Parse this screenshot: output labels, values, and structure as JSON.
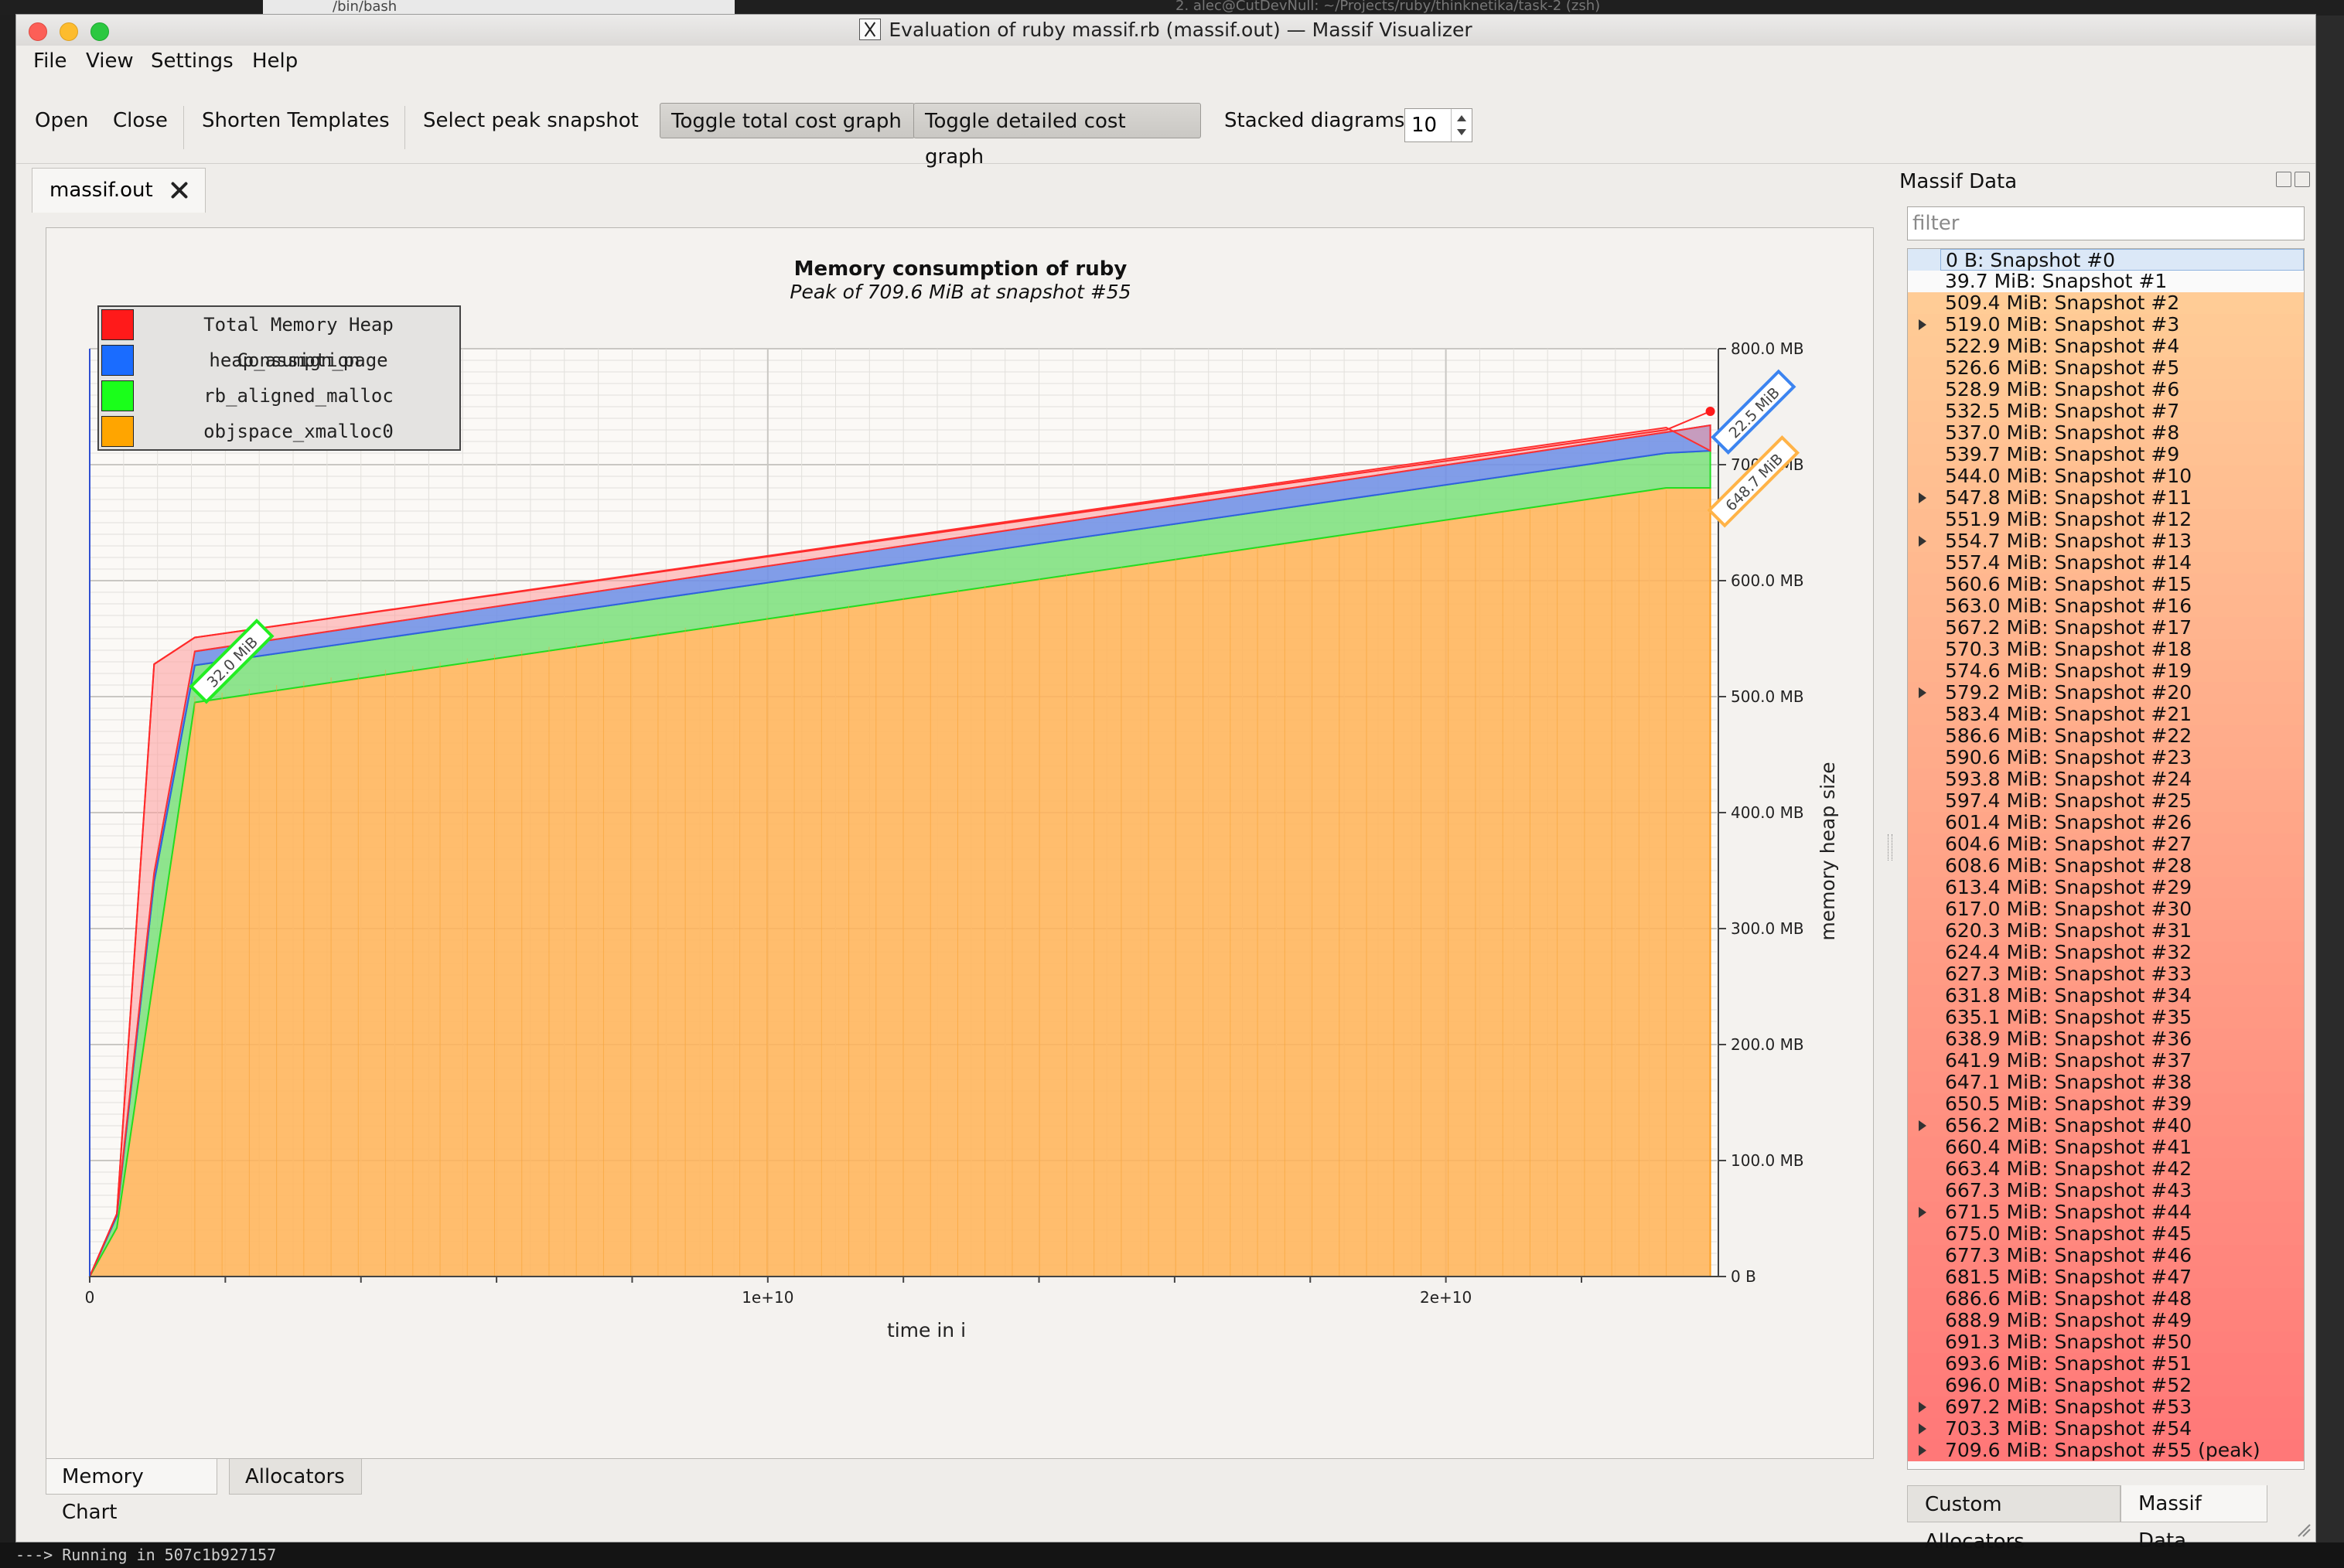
{
  "background": {
    "left_tab_title": "/bin/bash",
    "right_tab_title": "2. alec@CutDevNull: ~/Projects/ruby/thinknetika/task-2 (zsh)",
    "bottom_line": "---> Running in 507c1b927157"
  },
  "window": {
    "title": "Evaluation of ruby massif.rb (massif.out) — Massif Visualizer",
    "icon": "x11-icon"
  },
  "menu": [
    "File",
    "View",
    "Settings",
    "Help"
  ],
  "toolbar": {
    "open": "Open",
    "close": "Close",
    "shorten_templates": "Shorten Templates",
    "select_peak": "Select peak snapshot",
    "toggle_total": "Toggle total cost graph",
    "toggle_detailed": "Toggle detailed cost graph",
    "stacked_label": "Stacked diagrams:",
    "stacked_value": "10"
  },
  "document_tab": {
    "label": "massif.out",
    "close_icon": "close-icon"
  },
  "chart_data": {
    "type": "area",
    "stacked": true,
    "title": "Memory consumption of ruby",
    "subtitle": "Peak of 709.6 MiB at snapshot #55",
    "xlabel": "time in i",
    "ylabel": "memory heap size",
    "xlim": [
      0,
      24000000000
    ],
    "ylim": [
      0,
      800
    ],
    "x_ticks": [
      {
        "value": 0,
        "label": "0"
      },
      {
        "value": 10000000000,
        "label": "1e+10"
      },
      {
        "value": 20000000000,
        "label": "2e+10"
      }
    ],
    "y_ticks": [
      {
        "value": 0,
        "label": "0 B"
      },
      {
        "value": 100,
        "label": "100.0 MB"
      },
      {
        "value": 200,
        "label": "200.0 MB"
      },
      {
        "value": 300,
        "label": "300.0 MB"
      },
      {
        "value": 400,
        "label": "400.0 MB"
      },
      {
        "value": 500,
        "label": "500.0 MB"
      },
      {
        "value": 600,
        "label": "600.0 MB"
      },
      {
        "value": 700,
        "label": "700.0 MB"
      },
      {
        "value": 800,
        "label": "800.0 MB"
      }
    ],
    "grid": true,
    "legend_position": "top-left",
    "x": [
      0,
      400000000,
      950000000,
      1550000000,
      23250000000,
      23900000000
    ],
    "series": [
      {
        "name": "objspace_xmalloc0",
        "color": "#ffb347",
        "values": [
          0,
          42,
          260,
          495,
          680,
          680
        ]
      },
      {
        "name": "rb_aligned_malloc",
        "color": "#22ee22",
        "values": [
          0,
          10,
          80,
          32,
          30,
          32
        ]
      },
      {
        "name": "heap_assign_page",
        "color": "#3c84f0",
        "values": [
          0,
          2,
          8,
          12,
          18,
          22
        ]
      },
      {
        "name": "Total Memory Heap Consumption",
        "color": "#ff3a3a",
        "values": [
          0,
          0,
          180,
          12,
          4,
          -22
        ]
      }
    ],
    "total_line": [
      0,
      54,
      528,
      551,
      730,
      746
    ],
    "peak_marker": {
      "x": 23900000000,
      "y": 746
    },
    "annotations": [
      {
        "text": "32.0 MiB",
        "x": 2100000000,
        "y": 530,
        "color": "#22ee22"
      },
      {
        "text": "22.5 MiB",
        "x": 24500000000,
        "y": 745,
        "color": "#3c84f0"
      },
      {
        "text": "648.7 MiB",
        "x": 24500000000,
        "y": 685,
        "color": "#ffb347"
      }
    ]
  },
  "legend_items": [
    {
      "label": "Total Memory Heap Consumption",
      "color": "#ff1a1a"
    },
    {
      "label": "heap_assign_page",
      "color": "#1a6cff"
    },
    {
      "label": "rb_aligned_malloc",
      "color": "#1aff1a"
    },
    {
      "label": "objspace_xmalloc0",
      "color": "#ffa500"
    }
  ],
  "bottom_tabs": [
    "Memory Chart",
    "Allocators"
  ],
  "panel": {
    "title": "Massif Data",
    "filter_placeholder": "filter",
    "tabs": [
      "Custom Allocators",
      "Massif Data"
    ]
  },
  "snapshots": [
    {
      "label": "0 B: Snapshot #0",
      "expandable": false,
      "selected": true
    },
    {
      "label": "39.7 MiB: Snapshot #1",
      "expandable": false
    },
    {
      "label": "509.4 MiB: Snapshot #2",
      "expandable": false
    },
    {
      "label": "519.0 MiB: Snapshot #3",
      "expandable": true
    },
    {
      "label": "522.9 MiB: Snapshot #4",
      "expandable": false
    },
    {
      "label": "526.6 MiB: Snapshot #5",
      "expandable": false
    },
    {
      "label": "528.9 MiB: Snapshot #6",
      "expandable": false
    },
    {
      "label": "532.5 MiB: Snapshot #7",
      "expandable": false
    },
    {
      "label": "537.0 MiB: Snapshot #8",
      "expandable": false
    },
    {
      "label": "539.7 MiB: Snapshot #9",
      "expandable": false
    },
    {
      "label": "544.0 MiB: Snapshot #10",
      "expandable": false
    },
    {
      "label": "547.8 MiB: Snapshot #11",
      "expandable": true
    },
    {
      "label": "551.9 MiB: Snapshot #12",
      "expandable": false
    },
    {
      "label": "554.7 MiB: Snapshot #13",
      "expandable": true
    },
    {
      "label": "557.4 MiB: Snapshot #14",
      "expandable": false
    },
    {
      "label": "560.6 MiB: Snapshot #15",
      "expandable": false
    },
    {
      "label": "563.0 MiB: Snapshot #16",
      "expandable": false
    },
    {
      "label": "567.2 MiB: Snapshot #17",
      "expandable": false
    },
    {
      "label": "570.3 MiB: Snapshot #18",
      "expandable": false
    },
    {
      "label": "574.6 MiB: Snapshot #19",
      "expandable": false
    },
    {
      "label": "579.2 MiB: Snapshot #20",
      "expandable": true
    },
    {
      "label": "583.4 MiB: Snapshot #21",
      "expandable": false
    },
    {
      "label": "586.6 MiB: Snapshot #22",
      "expandable": false
    },
    {
      "label": "590.6 MiB: Snapshot #23",
      "expandable": false
    },
    {
      "label": "593.8 MiB: Snapshot #24",
      "expandable": false
    },
    {
      "label": "597.4 MiB: Snapshot #25",
      "expandable": false
    },
    {
      "label": "601.4 MiB: Snapshot #26",
      "expandable": false
    },
    {
      "label": "604.6 MiB: Snapshot #27",
      "expandable": false
    },
    {
      "label": "608.6 MiB: Snapshot #28",
      "expandable": false
    },
    {
      "label": "613.4 MiB: Snapshot #29",
      "expandable": false
    },
    {
      "label": "617.0 MiB: Snapshot #30",
      "expandable": false
    },
    {
      "label": "620.3 MiB: Snapshot #31",
      "expandable": false
    },
    {
      "label": "624.4 MiB: Snapshot #32",
      "expandable": false
    },
    {
      "label": "627.3 MiB: Snapshot #33",
      "expandable": false
    },
    {
      "label": "631.8 MiB: Snapshot #34",
      "expandable": false
    },
    {
      "label": "635.1 MiB: Snapshot #35",
      "expandable": false
    },
    {
      "label": "638.9 MiB: Snapshot #36",
      "expandable": false
    },
    {
      "label": "641.9 MiB: Snapshot #37",
      "expandable": false
    },
    {
      "label": "647.1 MiB: Snapshot #38",
      "expandable": false
    },
    {
      "label": "650.5 MiB: Snapshot #39",
      "expandable": false
    },
    {
      "label": "656.2 MiB: Snapshot #40",
      "expandable": true
    },
    {
      "label": "660.4 MiB: Snapshot #41",
      "expandable": false
    },
    {
      "label": "663.4 MiB: Snapshot #42",
      "expandable": false
    },
    {
      "label": "667.3 MiB: Snapshot #43",
      "expandable": false
    },
    {
      "label": "671.5 MiB: Snapshot #44",
      "expandable": true
    },
    {
      "label": "675.0 MiB: Snapshot #45",
      "expandable": false
    },
    {
      "label": "677.3 MiB: Snapshot #46",
      "expandable": false
    },
    {
      "label": "681.5 MiB: Snapshot #47",
      "expandable": false
    },
    {
      "label": "686.6 MiB: Snapshot #48",
      "expandable": false
    },
    {
      "label": "688.9 MiB: Snapshot #49",
      "expandable": false
    },
    {
      "label": "691.3 MiB: Snapshot #50",
      "expandable": false
    },
    {
      "label": "693.6 MiB: Snapshot #51",
      "expandable": false
    },
    {
      "label": "696.0 MiB: Snapshot #52",
      "expandable": false
    },
    {
      "label": "697.2 MiB: Snapshot #53",
      "expandable": true
    },
    {
      "label": "703.3 MiB: Snapshot #54",
      "expandable": true
    },
    {
      "label": "709.6 MiB: Snapshot #55 (peak)",
      "expandable": true
    }
  ]
}
